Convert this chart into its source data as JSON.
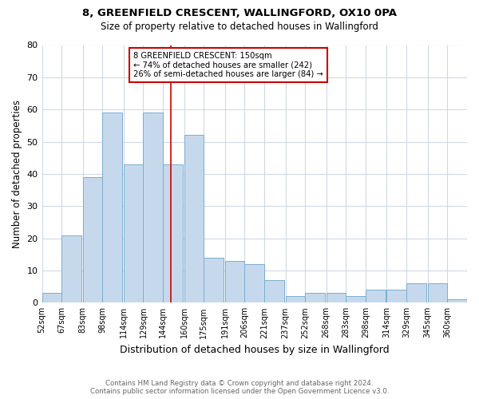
{
  "title1": "8, GREENFIELD CRESCENT, WALLINGFORD, OX10 0PA",
  "title2": "Size of property relative to detached houses in Wallingford",
  "xlabel": "Distribution of detached houses by size in Wallingford",
  "ylabel": "Number of detached properties",
  "footnote1": "Contains HM Land Registry data © Crown copyright and database right 2024.",
  "footnote2": "Contains public sector information licensed under the Open Government Licence v3.0.",
  "annotation_line1": "8 GREENFIELD CRESCENT: 150sqm",
  "annotation_line2": "← 74% of detached houses are smaller (242)",
  "annotation_line3": "26% of semi-detached houses are larger (84) →",
  "subject_size": 150,
  "bins": [
    52,
    67,
    83,
    98,
    114,
    129,
    144,
    160,
    175,
    191,
    206,
    221,
    237,
    252,
    268,
    283,
    298,
    314,
    329,
    345,
    360
  ],
  "counts": [
    3,
    21,
    39,
    59,
    43,
    59,
    43,
    52,
    14,
    13,
    12,
    7,
    2,
    3,
    3,
    2,
    4,
    4,
    6,
    6,
    1
  ],
  "bar_color": "#c6d9ec",
  "bar_edge_color": "#7aaecf",
  "vline_color": "#cc0000",
  "annotation_box_color": "#cc0000",
  "background_color": "#ffffff",
  "grid_color": "#d0d8e8",
  "ylim": [
    0,
    80
  ],
  "yticks": [
    0,
    10,
    20,
    30,
    40,
    50,
    60,
    70,
    80
  ]
}
